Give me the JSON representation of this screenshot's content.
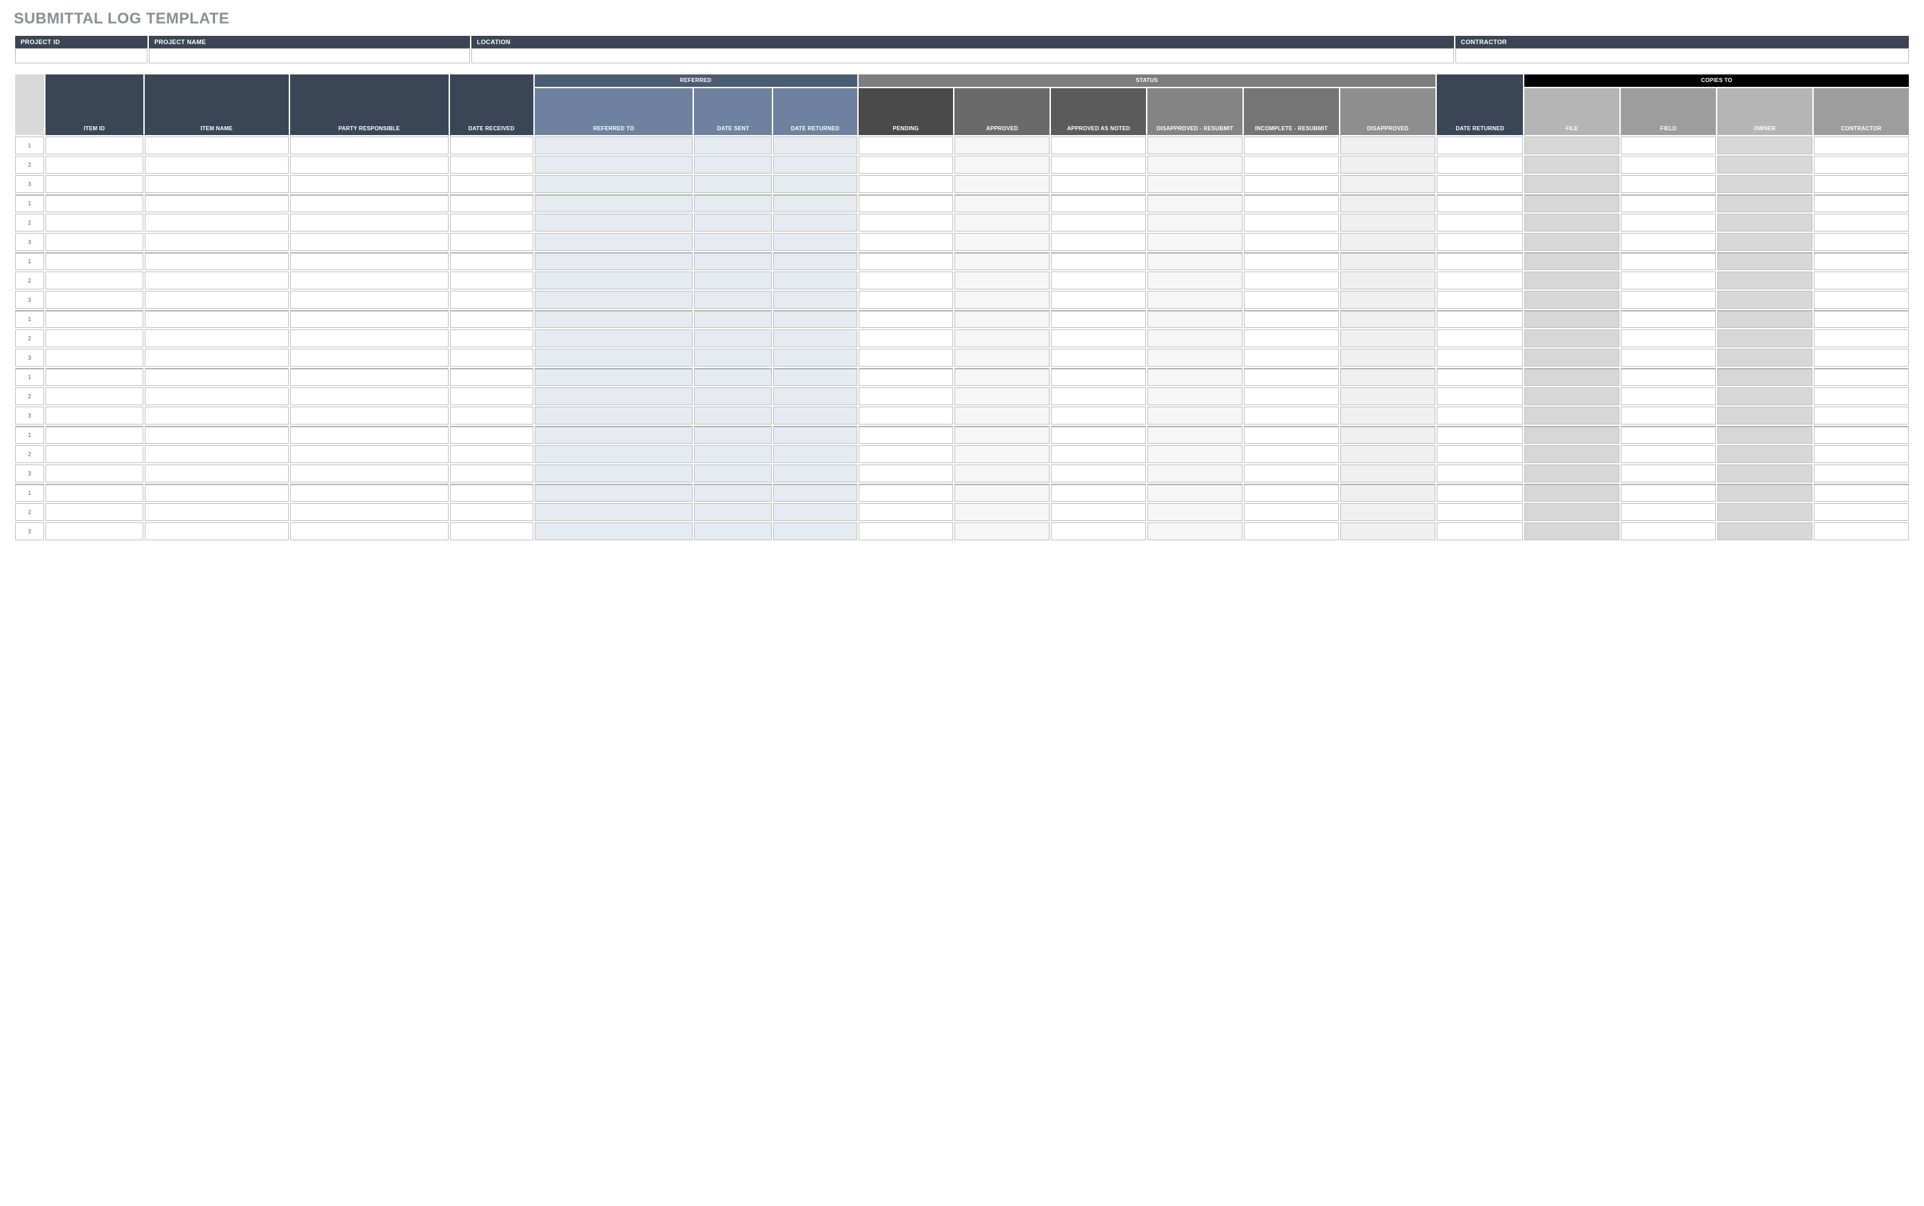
{
  "title": "SUBMITTAL LOG TEMPLATE",
  "colors": {
    "title_text": "#8a8e94",
    "header_slate": "#3a4656",
    "header_steel_group": "#4b5b71",
    "header_steel_sub": "#6e82a0",
    "header_grey_group": "#7d7d7d",
    "header_black": "#000000",
    "status_shades": [
      "#4a4a4a",
      "#6a6a6a",
      "#5b5b5b",
      "#848484",
      "#757575",
      "#8e8e8e"
    ],
    "copies_shades": [
      "#b5b5b5",
      "#9d9d9d"
    ],
    "cell_border": "#bfbfbf",
    "cell_ref_bg": "#e6ebf2",
    "cell_status_alt": [
      "#f6f6f6",
      "#f0f0f0"
    ],
    "cell_copy_alt": [
      "#d7d7d7",
      "#ffffff"
    ]
  },
  "info_fields": {
    "project_id": {
      "label": "PROJECT ID",
      "value": ""
    },
    "project_name": {
      "label": "PROJECT NAME",
      "value": ""
    },
    "location": {
      "label": "LOCATION",
      "value": ""
    },
    "contractor": {
      "label": "CONTRACTOR",
      "value": ""
    }
  },
  "info_col_widths_pct": [
    7,
    17,
    52,
    24
  ],
  "columns": {
    "rownum": {
      "label": "",
      "width": 20,
      "group": null
    },
    "item_id": {
      "label": "ITEM ID",
      "width": 68,
      "group": null
    },
    "item_name": {
      "label": "ITEM NAME",
      "width": 100,
      "group": null
    },
    "party": {
      "label": "PARTY RESPONSIBLE",
      "width": 110,
      "group": null
    },
    "date_received": {
      "label": "DATE RECEIVED",
      "width": 58,
      "group": null
    },
    "referred_to": {
      "label": "REFERRED TO",
      "width": 110,
      "group": "referred"
    },
    "date_sent": {
      "label": "DATE SENT",
      "width": 54,
      "group": "referred"
    },
    "date_returned_r": {
      "label": "DATE RETURNED",
      "width": 58,
      "group": "referred"
    },
    "pending": {
      "label": "PENDING",
      "width": 66,
      "group": "status"
    },
    "approved": {
      "label": "APPROVED",
      "width": 66,
      "group": "status"
    },
    "approved_noted": {
      "label": "APPROVED AS NOTED",
      "width": 66,
      "group": "status"
    },
    "disapp_resub": {
      "label": "DISAPPROVED - RESUBMIT",
      "width": 66,
      "group": "status"
    },
    "incomp_resub": {
      "label": "INCOMPLETE - RESUBMIT",
      "width": 66,
      "group": "status"
    },
    "disapproved": {
      "label": "DISAPPROVED",
      "width": 66,
      "group": "status"
    },
    "date_returned": {
      "label": "DATE RETURNED",
      "width": 60,
      "group": null
    },
    "file": {
      "label": "FILE",
      "width": 66,
      "group": "copies"
    },
    "field": {
      "label": "FIELD",
      "width": 66,
      "group": "copies"
    },
    "owner": {
      "label": "OWNER",
      "width": 66,
      "group": "copies"
    },
    "c_contractor": {
      "label": "CONTRACTOR",
      "width": 66,
      "group": "copies"
    }
  },
  "groups": {
    "referred": {
      "label": "REFERRED"
    },
    "status": {
      "label": "STATUS"
    },
    "copies": {
      "label": "COPIES TO"
    }
  },
  "row_groups": 7,
  "rows_per_group": 3
}
